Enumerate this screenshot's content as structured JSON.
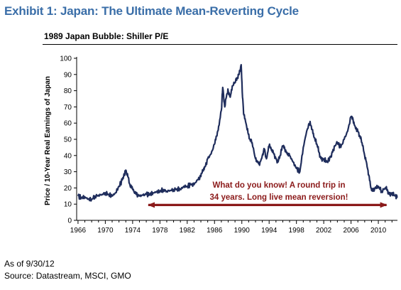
{
  "exhibit": {
    "title": "Exhibit 1: Japan: The Ultimate Mean-Reverting Cycle"
  },
  "footnotes": {
    "as_of": "As of 9/30/12",
    "source": "Source: Datastream, MSCI, GMO"
  },
  "colors": {
    "title": "#3a6ea8",
    "line": "#1f2d5c",
    "annotation": "#8b1a1a"
  },
  "chart_data": {
    "type": "line",
    "title": "1989 Japan Bubble: Shiller P/E",
    "ylabel": "Price / 10-Year Real Earnings of Japan",
    "xlabel": "",
    "ylim": [
      0,
      100
    ],
    "xlim": [
      1965.8,
      2012.8
    ],
    "yticks": [
      0,
      10,
      20,
      30,
      40,
      50,
      60,
      70,
      80,
      90,
      100
    ],
    "xticks": [
      1966,
      1970,
      1974,
      1978,
      1982,
      1986,
      1990,
      1994,
      1998,
      2002,
      2006,
      2010
    ],
    "grid": false,
    "annotation": {
      "lines": [
        "What do you know! A round trip in",
        "34 years. Long live mean reversion!"
      ],
      "arrow_from": 1976.3,
      "arrow_to": 2011.2,
      "arrow_y": 9.5
    },
    "series": [
      {
        "x": [
          1966.0,
          1966.5,
          1967.0,
          1967.5,
          1968.0,
          1968.5,
          1969.0,
          1969.5,
          1970.0,
          1970.5,
          1971.0,
          1971.5,
          1972.0,
          1972.5,
          1972.8,
          1973.0,
          1973.3,
          1973.6,
          1974.0,
          1974.5,
          1975.0,
          1975.5,
          1976.0,
          1976.5,
          1977.0,
          1977.5,
          1978.0,
          1978.5,
          1979.0,
          1979.5,
          1980.0,
          1980.5,
          1981.0,
          1981.5,
          1982.0,
          1982.5,
          1983.0,
          1983.5,
          1984.0,
          1984.3,
          1984.6,
          1985.0,
          1985.5,
          1986.0,
          1986.3,
          1986.6,
          1987.0,
          1987.2,
          1987.5,
          1987.8,
          1988.0,
          1988.3,
          1988.6,
          1989.0,
          1989.3,
          1989.6,
          1989.9,
          1990.1,
          1990.3,
          1990.6,
          1990.9,
          1991.2,
          1991.5,
          1992.0,
          1992.3,
          1992.6,
          1993.0,
          1993.3,
          1993.6,
          1994.0,
          1994.3,
          1994.6,
          1995.0,
          1995.3,
          1995.6,
          1996.0,
          1996.3,
          1996.6,
          1997.0,
          1997.5,
          1998.0,
          1998.5,
          1999.0,
          1999.5,
          2000.0,
          2000.3,
          2000.6,
          2001.0,
          2001.3,
          2001.6,
          2002.0,
          2002.5,
          2003.0,
          2003.3,
          2003.6,
          2004.0,
          2004.5,
          2005.0,
          2005.5,
          2006.0,
          2006.3,
          2006.6,
          2007.0,
          2007.3,
          2007.6,
          2008.0,
          2008.3,
          2008.6,
          2008.9,
          2009.2,
          2009.5,
          2010.0,
          2010.5,
          2011.0,
          2011.3,
          2011.6,
          2012.0,
          2012.5,
          2012.75
        ],
        "values": [
          15,
          14,
          14.5,
          13,
          13,
          15,
          15.5,
          16,
          17,
          16,
          15,
          17,
          21,
          25,
          28,
          31,
          27,
          22,
          19,
          16,
          15,
          15.5,
          16,
          16,
          17,
          17.5,
          18,
          19,
          18,
          18.5,
          19,
          19.5,
          19,
          21,
          21,
          22,
          22,
          25,
          27,
          31,
          33,
          38,
          41,
          47,
          52,
          58,
          68,
          82,
          70,
          78,
          80,
          76,
          83,
          85,
          88,
          90,
          96,
          76,
          65,
          60,
          54,
          50,
          48,
          38,
          36,
          34,
          40,
          44,
          38,
          46,
          44,
          42,
          38,
          36,
          40,
          46,
          44,
          42,
          40,
          36,
          32,
          30,
          45,
          55,
          61,
          56,
          51,
          47,
          42,
          38,
          38,
          36,
          39,
          42,
          46,
          48,
          45,
          50,
          55,
          64,
          62,
          58,
          55,
          52,
          48,
          40,
          35,
          28,
          20,
          18,
          20,
          21,
          18,
          20,
          19,
          16,
          17,
          15,
          14
        ]
      }
    ]
  }
}
